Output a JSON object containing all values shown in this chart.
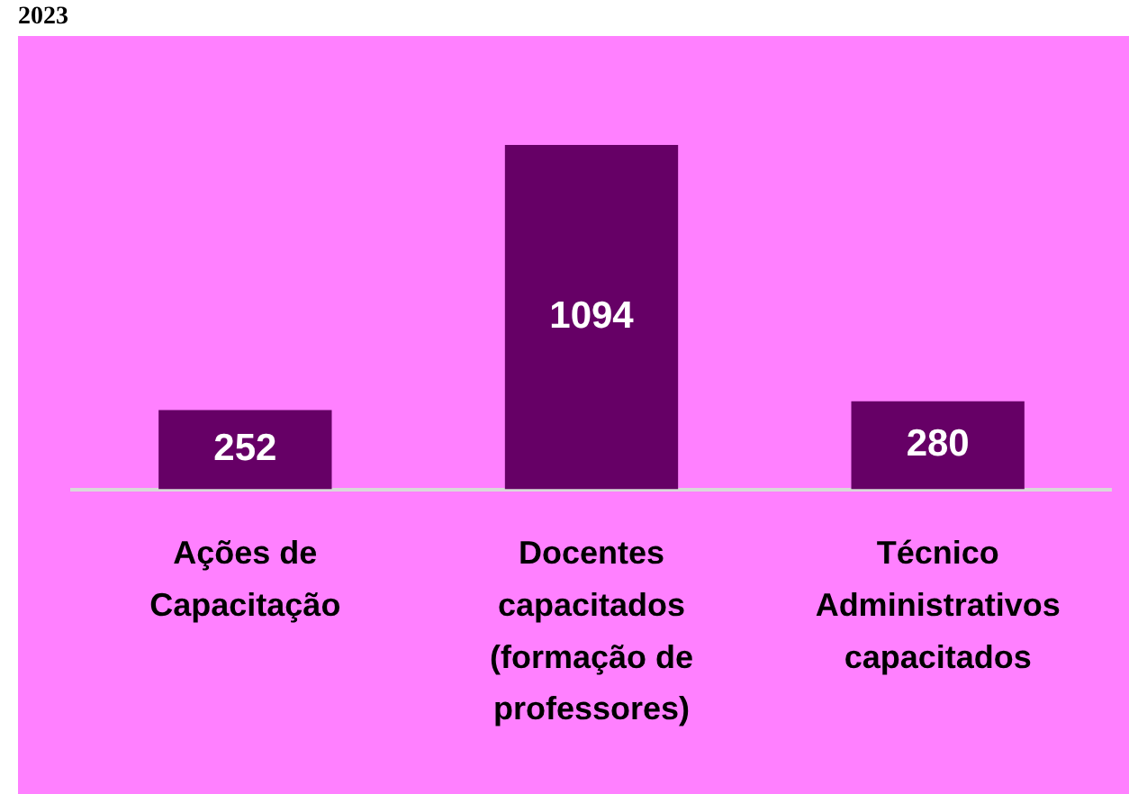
{
  "chart_data": {
    "type": "bar",
    "title": "2023",
    "categories": [
      "Ações de Capacitação",
      "Docentes capacitados (formação de professores)",
      "Técnico Administrativos capacitados"
    ],
    "values": [
      252,
      1094,
      280
    ],
    "color": "#660066",
    "data_labels": true,
    "grid": false,
    "legend": false
  }
}
